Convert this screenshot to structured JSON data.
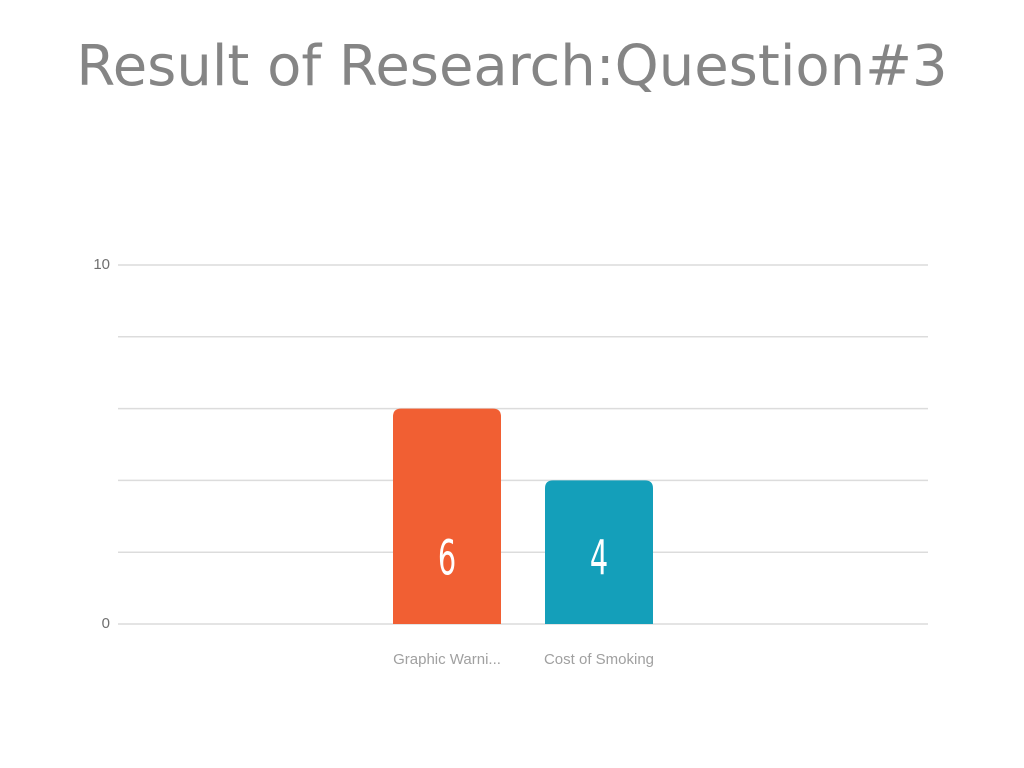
{
  "chart_data": {
    "type": "bar",
    "title": "Result of Research:Question#3",
    "categories": [
      "Graphic Warni...",
      "Cost of Smoking"
    ],
    "values": [
      6,
      4
    ],
    "colors": [
      "#f15f33",
      "#149fba"
    ],
    "ylim": [
      0,
      10
    ],
    "yticks": [
      0,
      10
    ],
    "minor_yticks": [
      2,
      4,
      6,
      8
    ],
    "grid": true
  }
}
